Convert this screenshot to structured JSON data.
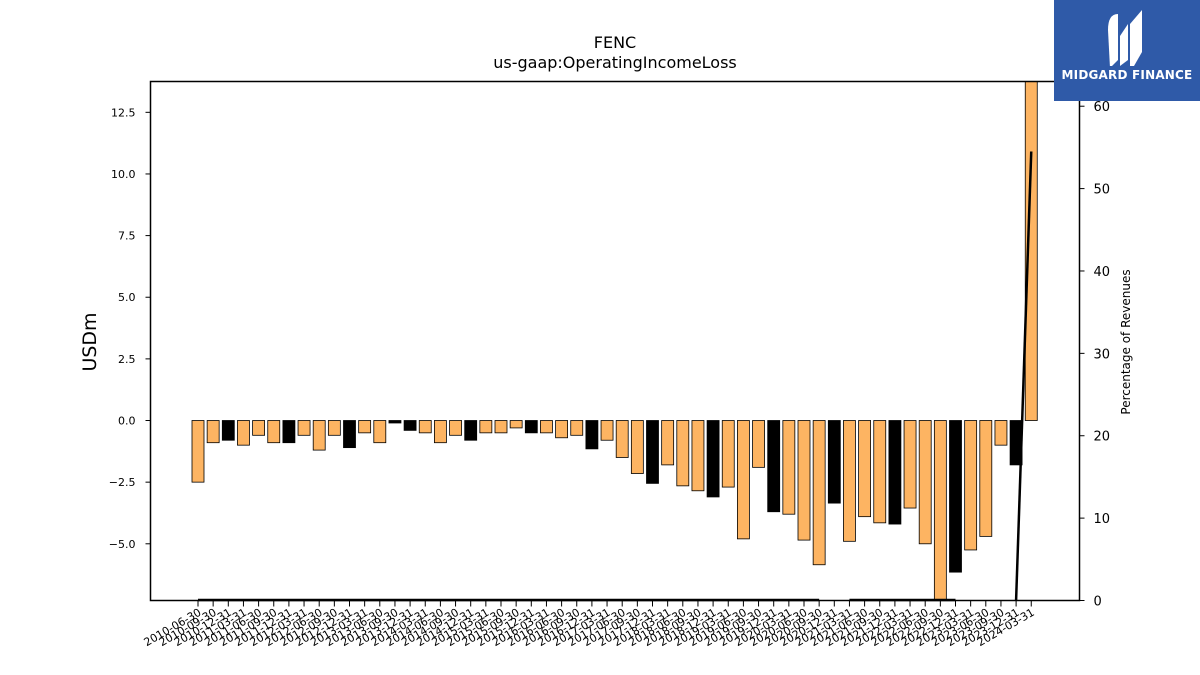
{
  "chart_data": {
    "type": "bar",
    "title": "FENC",
    "subtitle": "us-gaap:OperatingIncomeLoss",
    "ylabel": "USDm",
    "y2label": "Percentage of Revenues",
    "ylim": [
      -7.3,
      13.75
    ],
    "y2lim": [
      0,
      63
    ],
    "yticks": [
      -5.0,
      -2.5,
      0.0,
      2.5,
      5.0,
      7.5,
      10.0,
      12.5
    ],
    "y2ticks": [
      0,
      10,
      20,
      30,
      40,
      50,
      60
    ],
    "categories": [
      "2010-06-30",
      "2010-09-30",
      "2010-12-31",
      "2011-03-31",
      "2011-06-30",
      "2011-09-30",
      "2011-12-31",
      "2012-03-31",
      "2012-06-30",
      "2012-09-30",
      "2012-12-31",
      "2013-03-31",
      "2013-06-30",
      "2013-09-30",
      "2013-12-31",
      "2014-03-31",
      "2014-06-30",
      "2014-09-30",
      "2014-12-31",
      "2015-03-31",
      "2015-06-30",
      "2015-09-30",
      "2015-12-31",
      "2016-03-31",
      "2016-06-30",
      "2016-09-30",
      "2016-12-31",
      "2017-03-31",
      "2017-06-30",
      "2017-09-30",
      "2017-12-31",
      "2018-03-31",
      "2018-06-30",
      "2018-09-30",
      "2018-12-31",
      "2019-03-31",
      "2019-06-30",
      "2019-09-30",
      "2019-12-31",
      "2020-03-31",
      "2020-06-30",
      "2020-09-30",
      "2020-12-31",
      "2021-03-31",
      "2021-06-30",
      "2021-09-30",
      "2021-12-31",
      "2022-03-31",
      "2022-06-30",
      "2022-09-30",
      "2022-12-31",
      "2023-03-31",
      "2023-06-30",
      "2023-09-30",
      "2023-12-31",
      "2024-03-31"
    ],
    "values": [
      -2.5,
      -0.9,
      -0.8,
      -1.0,
      -0.6,
      -0.9,
      -0.9,
      -0.6,
      -1.2,
      -0.6,
      -1.1,
      -0.5,
      -0.9,
      -0.1,
      -0.4,
      -0.5,
      -0.9,
      -0.6,
      -0.8,
      -0.5,
      -0.5,
      -0.3,
      -0.5,
      -0.5,
      -0.7,
      -0.6,
      -1.15,
      -0.8,
      -1.5,
      -2.15,
      -2.55,
      -1.8,
      -2.65,
      -2.85,
      -3.1,
      -2.7,
      -4.8,
      -1.9,
      -3.7,
      -3.8,
      -4.85,
      -5.85,
      -3.35,
      -4.9,
      -3.9,
      -4.15,
      -4.2,
      -3.55,
      -5.0,
      -7.3,
      -6.15,
      -5.25,
      -4.7,
      -1.0,
      -1.8,
      13.75
    ],
    "colors": [
      "orange",
      "orange",
      "black",
      "orange",
      "orange",
      "orange",
      "black",
      "orange",
      "orange",
      "orange",
      "black",
      "orange",
      "orange",
      "black",
      "black",
      "orange",
      "orange",
      "orange",
      "black",
      "orange",
      "orange",
      "orange",
      "black",
      "orange",
      "orange",
      "orange",
      "black",
      "orange",
      "orange",
      "orange",
      "black",
      "orange",
      "orange",
      "orange",
      "black",
      "orange",
      "orange",
      "orange",
      "black",
      "orange",
      "orange",
      "orange",
      "black",
      "orange",
      "orange",
      "orange",
      "black",
      "orange",
      "orange",
      "orange",
      "black",
      "orange",
      "orange",
      "orange",
      "black",
      "orange"
    ],
    "pct_revenue": [
      0,
      0,
      0,
      0,
      0,
      0,
      0,
      0,
      0,
      0,
      0,
      0,
      0,
      0,
      0,
      0,
      0,
      0,
      0,
      0,
      0,
      0,
      0,
      0,
      0,
      0,
      0,
      0,
      0,
      0,
      0,
      0,
      0,
      0,
      0,
      0,
      0,
      0,
      0,
      0,
      0,
      0,
      null,
      0,
      0,
      0,
      0,
      0,
      0,
      0,
      0,
      null,
      0,
      null,
      0,
      54.5
    ],
    "palette": {
      "orange": "#fdb462",
      "black": "#000000",
      "edge": "#000000",
      "line": "#000000"
    },
    "grid": false,
    "legend": "none"
  },
  "logo": {
    "text": "MIDGARD FINANCE",
    "color": "#2f5aa8"
  }
}
